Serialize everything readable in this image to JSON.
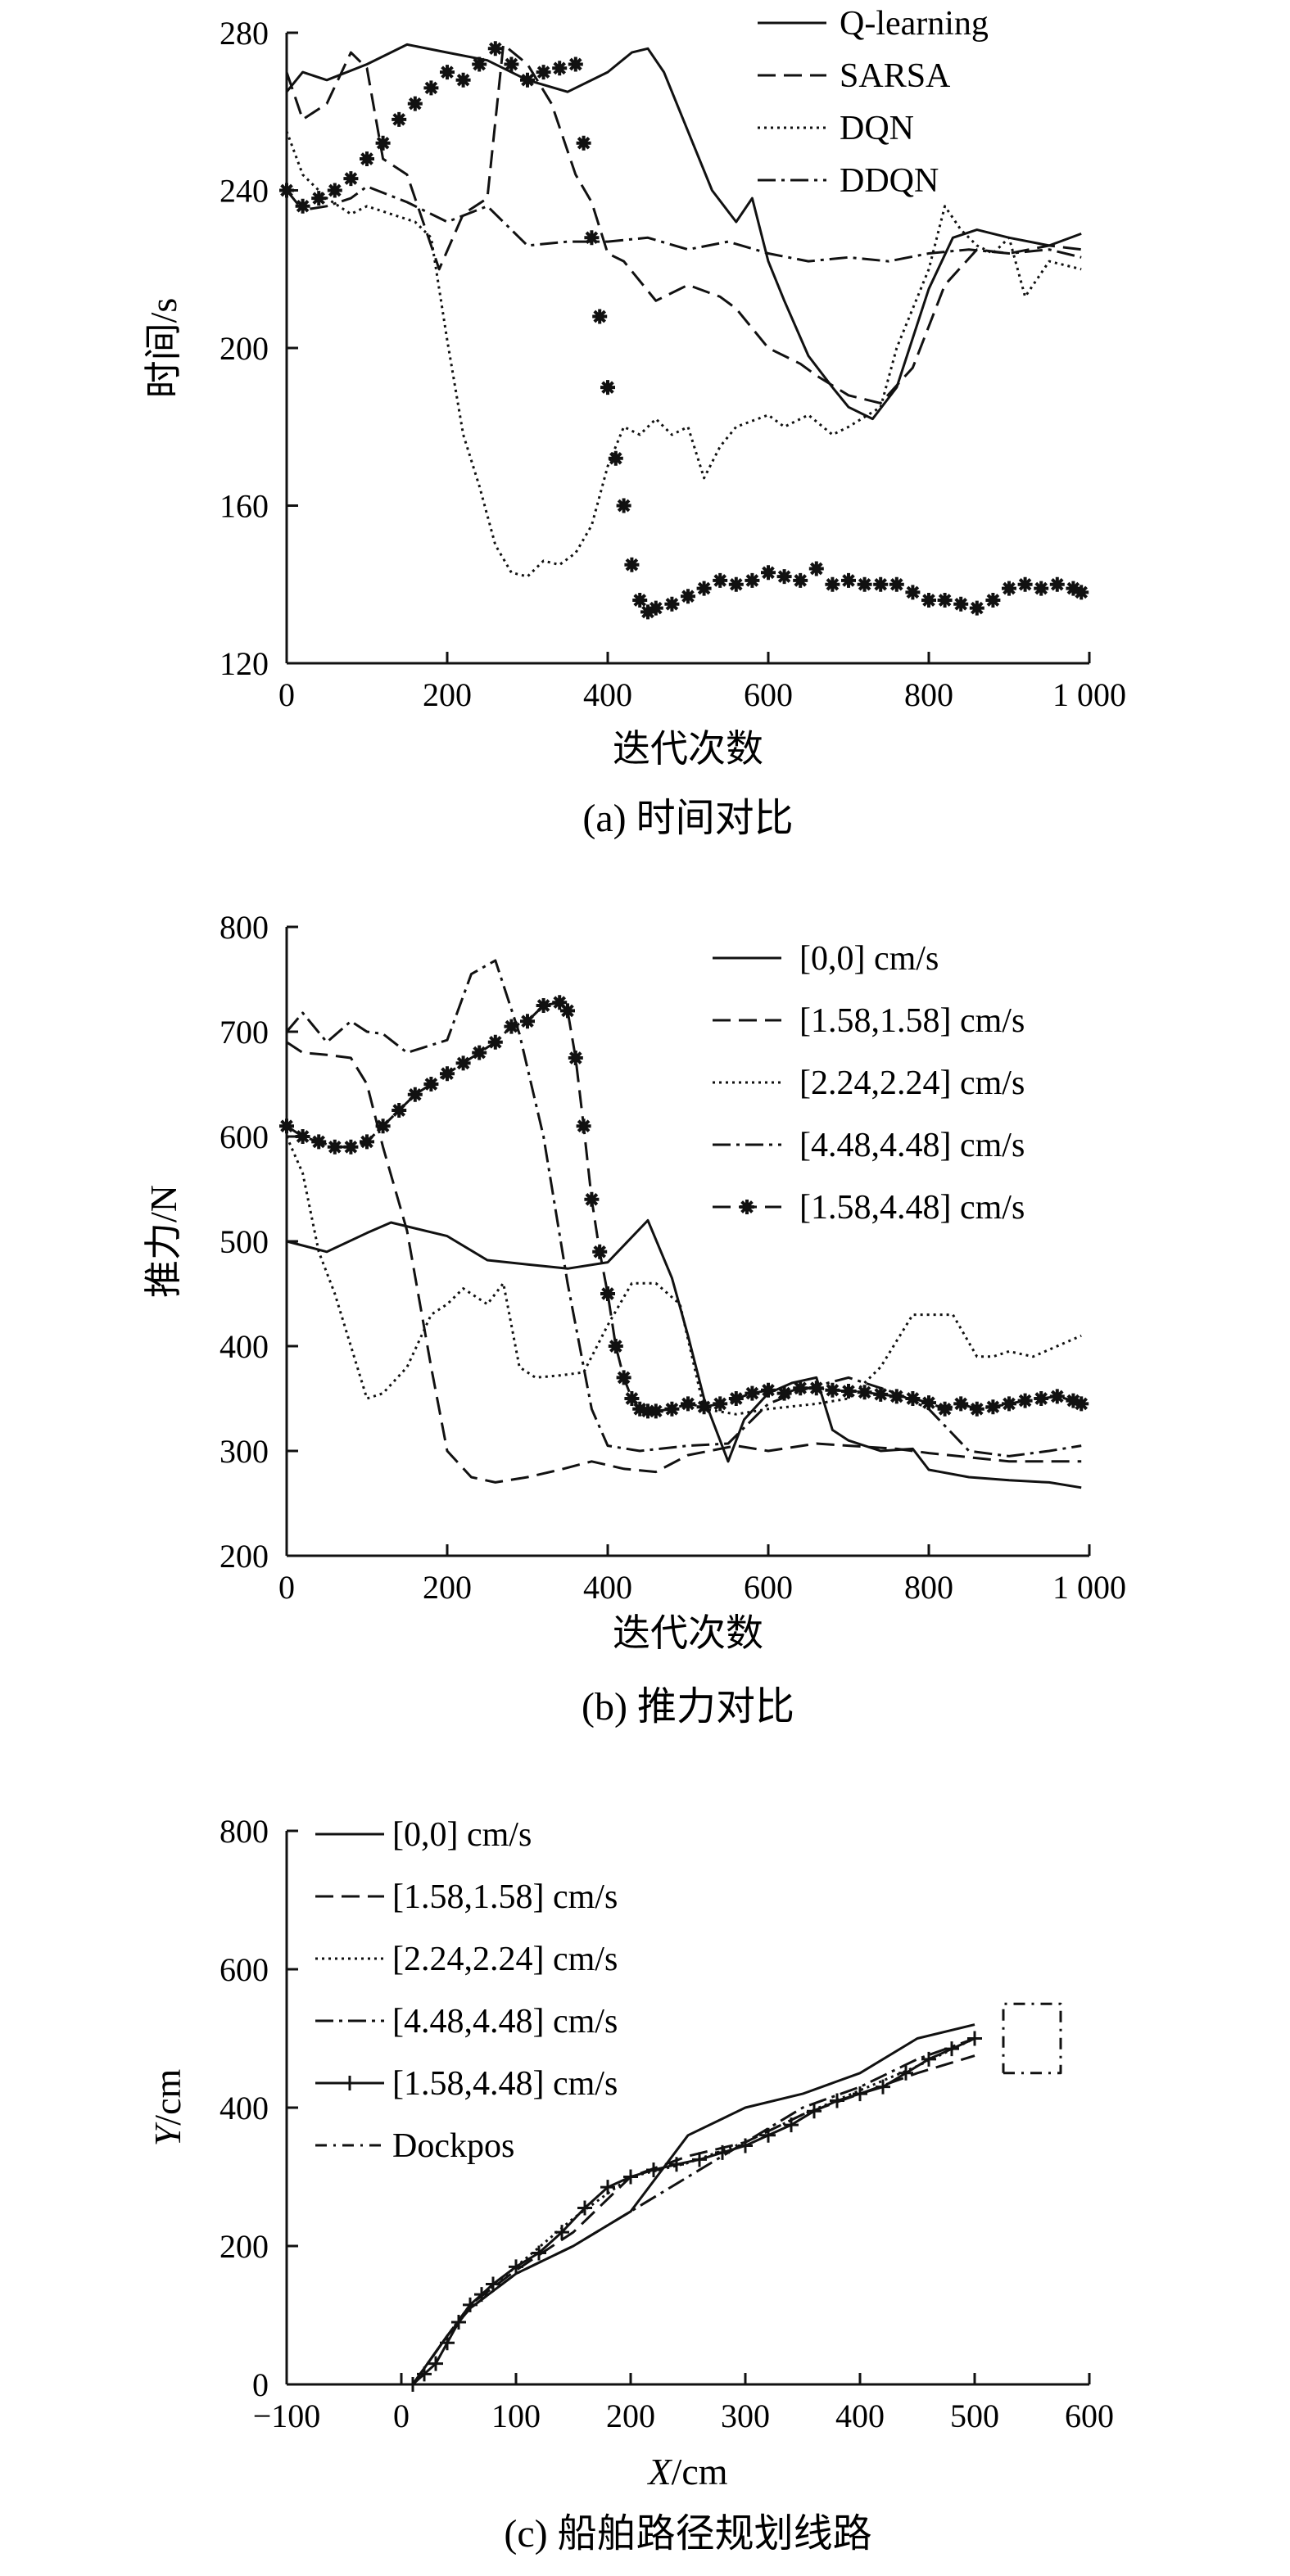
{
  "chart_data": [
    {
      "id": "a",
      "type": "line",
      "caption": "(a) 时间对比",
      "xlabel": "迭代次数",
      "ylabel": "时间/s",
      "xlim": [
        0,
        1000
      ],
      "ylim": [
        120,
        280
      ],
      "xticks": [
        0,
        200,
        400,
        600,
        800,
        1000
      ],
      "xtick_labels": [
        "0",
        "200",
        "400",
        "600",
        "800",
        "1 000"
      ],
      "yticks": [
        120,
        160,
        200,
        240,
        280
      ],
      "ytick_labels": [
        "120",
        "160",
        "200",
        "240",
        "280"
      ],
      "legend_position": "top-right",
      "series": [
        {
          "name": "Q-learning",
          "style": "solid",
          "x": [
            0,
            20,
            50,
            100,
            150,
            200,
            250,
            300,
            350,
            400,
            430,
            450,
            470,
            500,
            530,
            560,
            580,
            600,
            620,
            650,
            680,
            700,
            730,
            760,
            800,
            830,
            860,
            900,
            950,
            990
          ],
          "y": [
            265,
            270,
            268,
            272,
            277,
            275,
            273,
            268,
            265,
            270,
            275,
            276,
            270,
            255,
            240,
            232,
            238,
            222,
            212,
            198,
            190,
            185,
            182,
            190,
            215,
            228,
            230,
            228,
            226,
            229
          ]
        },
        {
          "name": "SARSA",
          "style": "dashed",
          "x": [
            0,
            20,
            50,
            80,
            100,
            120,
            150,
            170,
            190,
            220,
            250,
            270,
            300,
            330,
            360,
            380,
            400,
            420,
            460,
            500,
            540,
            560,
            600,
            640,
            660,
            700,
            740,
            780,
            820,
            860,
            900,
            950,
            990
          ],
          "y": [
            270,
            258,
            262,
            275,
            271,
            248,
            244,
            232,
            220,
            234,
            238,
            277,
            272,
            262,
            244,
            237,
            224,
            222,
            212,
            216,
            213,
            210,
            200,
            196,
            193,
            188,
            186,
            195,
            216,
            225,
            224,
            226,
            225
          ]
        },
        {
          "name": "DQN",
          "style": "dotted",
          "x": [
            0,
            20,
            50,
            80,
            100,
            130,
            160,
            180,
            200,
            220,
            240,
            260,
            280,
            300,
            320,
            340,
            360,
            380,
            400,
            420,
            440,
            460,
            480,
            500,
            520,
            540,
            560,
            600,
            620,
            650,
            680,
            700,
            740,
            760,
            800,
            820,
            840,
            860,
            880,
            900,
            920,
            950,
            990
          ],
          "y": [
            255,
            244,
            238,
            234,
            236,
            234,
            232,
            228,
            202,
            178,
            165,
            150,
            143,
            142,
            146,
            145,
            148,
            155,
            170,
            180,
            178,
            182,
            178,
            180,
            167,
            175,
            180,
            183,
            180,
            183,
            178,
            180,
            185,
            200,
            220,
            236,
            230,
            226,
            224,
            228,
            213,
            222,
            220
          ]
        },
        {
          "name": "DDQN",
          "style": "dashdot",
          "x": [
            0,
            20,
            50,
            80,
            100,
            150,
            200,
            250,
            300,
            350,
            400,
            450,
            500,
            550,
            600,
            650,
            700,
            750,
            800,
            850,
            900,
            950,
            990
          ],
          "y": [
            240,
            235,
            236,
            238,
            241,
            237,
            232,
            236,
            226,
            227,
            227,
            228,
            225,
            227,
            224,
            222,
            223,
            222,
            224,
            225,
            224,
            225,
            223
          ]
        },
        {
          "name": "",
          "style": "star-markers",
          "x": [
            0,
            20,
            40,
            60,
            80,
            100,
            120,
            140,
            160,
            180,
            200,
            220,
            240,
            260,
            280,
            300,
            320,
            340,
            360,
            370,
            380,
            390,
            400,
            410,
            420,
            430,
            440,
            450,
            460,
            480,
            500,
            520,
            540,
            560,
            580,
            600,
            620,
            640,
            660,
            680,
            700,
            720,
            740,
            760,
            780,
            800,
            820,
            840,
            860,
            880,
            900,
            920,
            940,
            960,
            980,
            990
          ],
          "y": [
            240,
            236,
            238,
            240,
            243,
            248,
            252,
            258,
            262,
            266,
            270,
            268,
            272,
            276,
            272,
            268,
            270,
            271,
            272,
            252,
            228,
            208,
            190,
            172,
            160,
            145,
            136,
            133,
            134,
            135,
            137,
            139,
            141,
            140,
            141,
            143,
            142,
            141,
            144,
            140,
            141,
            140,
            140,
            140,
            138,
            136,
            136,
            135,
            134,
            136,
            139,
            140,
            139,
            140,
            139,
            138
          ]
        }
      ]
    },
    {
      "id": "b",
      "type": "line",
      "caption": "(b) 推力对比",
      "xlabel": "迭代次数",
      "ylabel": "推力/N",
      "xlim": [
        0,
        1000
      ],
      "ylim": [
        200,
        800
      ],
      "xticks": [
        0,
        200,
        400,
        600,
        800,
        1000
      ],
      "xtick_labels": [
        "0",
        "200",
        "400",
        "600",
        "800",
        "1 000"
      ],
      "yticks": [
        200,
        300,
        400,
        500,
        600,
        700,
        800
      ],
      "ytick_labels": [
        "200",
        "300",
        "400",
        "500",
        "600",
        "700",
        "800"
      ],
      "legend_position": "top-right",
      "series": [
        {
          "name": "[0,0] cm/s",
          "style": "solid",
          "x": [
            0,
            50,
            100,
            130,
            200,
            250,
            300,
            350,
            400,
            450,
            480,
            500,
            520,
            550,
            570,
            600,
            630,
            660,
            680,
            700,
            740,
            780,
            800,
            850,
            900,
            950,
            990
          ],
          "y": [
            500,
            490,
            508,
            518,
            505,
            482,
            478,
            474,
            480,
            520,
            465,
            410,
            350,
            290,
            330,
            355,
            365,
            370,
            320,
            310,
            300,
            302,
            282,
            275,
            272,
            270,
            265
          ]
        },
        {
          "name": "[1.58,1.58] cm/s",
          "style": "dashed",
          "x": [
            0,
            20,
            50,
            80,
            100,
            120,
            150,
            180,
            200,
            230,
            260,
            300,
            340,
            380,
            420,
            460,
            500,
            560,
            600,
            660,
            700,
            760,
            800,
            850,
            900,
            950,
            990
          ],
          "y": [
            690,
            680,
            678,
            675,
            650,
            590,
            510,
            380,
            300,
            275,
            270,
            275,
            282,
            290,
            283,
            280,
            296,
            305,
            300,
            307,
            305,
            302,
            298,
            294,
            290,
            290,
            290
          ]
        },
        {
          "name": "[2.24,2.24] cm/s",
          "style": "dotted",
          "x": [
            0,
            20,
            40,
            60,
            80,
            100,
            120,
            150,
            180,
            200,
            220,
            250,
            270,
            290,
            310,
            340,
            370,
            400,
            430,
            460,
            490,
            520,
            560,
            600,
            660,
            700,
            740,
            780,
            800,
            830,
            860,
            880,
            900,
            930,
            960,
            990
          ],
          "y": [
            600,
            565,
            490,
            450,
            400,
            350,
            355,
            380,
            430,
            440,
            455,
            440,
            460,
            380,
            370,
            372,
            375,
            420,
            460,
            460,
            440,
            340,
            335,
            340,
            345,
            350,
            380,
            430,
            430,
            430,
            390,
            390,
            395,
            390,
            400,
            410
          ]
        },
        {
          "name": "[4.48,4.48] cm/s",
          "style": "dashdot",
          "x": [
            0,
            20,
            50,
            80,
            100,
            120,
            150,
            200,
            230,
            260,
            290,
            320,
            350,
            380,
            400,
            440,
            500,
            550,
            600,
            650,
            700,
            760,
            800,
            850,
            900,
            950,
            990
          ],
          "y": [
            700,
            718,
            690,
            710,
            700,
            698,
            680,
            692,
            755,
            768,
            698,
            600,
            460,
            340,
            305,
            300,
            305,
            307,
            345,
            360,
            370,
            355,
            340,
            300,
            295,
            300,
            305
          ]
        },
        {
          "name": "[1.58,4.48] cm/s",
          "style": "dashed-star",
          "x": [
            0,
            20,
            40,
            60,
            80,
            100,
            120,
            140,
            160,
            180,
            200,
            220,
            240,
            260,
            280,
            300,
            320,
            340,
            350,
            360,
            370,
            380,
            390,
            400,
            410,
            420,
            430,
            440,
            450,
            460,
            480,
            500,
            520,
            540,
            560,
            580,
            600,
            620,
            640,
            660,
            680,
            700,
            720,
            740,
            760,
            780,
            800,
            820,
            840,
            860,
            880,
            900,
            920,
            940,
            960,
            980,
            990
          ],
          "y": [
            610,
            600,
            595,
            590,
            590,
            595,
            610,
            625,
            640,
            650,
            660,
            670,
            680,
            690,
            705,
            710,
            725,
            728,
            720,
            675,
            610,
            540,
            490,
            450,
            400,
            370,
            350,
            340,
            338,
            338,
            340,
            345,
            342,
            345,
            350,
            355,
            358,
            355,
            360,
            360,
            358,
            357,
            356,
            354,
            352,
            350,
            346,
            340,
            345,
            340,
            342,
            345,
            348,
            350,
            352,
            348,
            345
          ]
        }
      ]
    },
    {
      "id": "c",
      "type": "line",
      "caption": "(c) 船舶路径规划线路",
      "xlabel_var": "X",
      "xlabel_unit": "/cm",
      "ylabel_var": "Y",
      "ylabel_unit": "/cm",
      "xlim": [
        -100,
        600
      ],
      "ylim": [
        0,
        800
      ],
      "xticks": [
        -100,
        0,
        100,
        200,
        300,
        400,
        500,
        600
      ],
      "xtick_labels": [
        "−100",
        "0",
        "100",
        "200",
        "300",
        "400",
        "500",
        "600"
      ],
      "yticks": [
        0,
        200,
        400,
        600,
        800
      ],
      "ytick_labels": [
        "0",
        "200",
        "400",
        "600",
        "800"
      ],
      "legend_position": "top-left",
      "series": [
        {
          "name": "[0,0] cm/s",
          "style": "solid",
          "x": [
            10,
            40,
            60,
            100,
            150,
            200,
            250,
            300,
            350,
            400,
            450,
            500
          ],
          "y": [
            0,
            70,
            110,
            160,
            200,
            250,
            360,
            400,
            420,
            450,
            500,
            520
          ]
        },
        {
          "name": "[1.58,1.58] cm/s",
          "style": "dashed",
          "x": [
            10,
            40,
            60,
            100,
            150,
            200,
            250,
            300,
            350,
            400,
            450,
            500
          ],
          "y": [
            0,
            70,
            115,
            165,
            220,
            300,
            330,
            350,
            390,
            420,
            450,
            475
          ]
        },
        {
          "name": "[2.24,2.24] cm/s",
          "style": "dotted",
          "x": [
            10,
            40,
            60,
            100,
            150,
            200,
            250,
            300,
            350,
            400,
            450,
            500
          ],
          "y": [
            0,
            70,
            115,
            170,
            240,
            300,
            320,
            350,
            390,
            425,
            460,
            500
          ]
        },
        {
          "name": "[4.48,4.48] cm/s",
          "style": "dashdot",
          "x": [
            10,
            40,
            60,
            100,
            150,
            200,
            250,
            300,
            350,
            400,
            450,
            500
          ],
          "y": [
            0,
            70,
            110,
            160,
            200,
            250,
            300,
            350,
            400,
            430,
            470,
            500
          ]
        },
        {
          "name": "[1.58,4.48] cm/s",
          "style": "solid-plus",
          "x": [
            10,
            20,
            30,
            40,
            50,
            60,
            70,
            80,
            100,
            120,
            140,
            160,
            180,
            200,
            220,
            240,
            260,
            280,
            300,
            320,
            340,
            360,
            380,
            400,
            420,
            440,
            460,
            480,
            500
          ],
          "y": [
            0,
            15,
            30,
            60,
            90,
            115,
            130,
            145,
            170,
            190,
            220,
            255,
            285,
            300,
            310,
            318,
            325,
            335,
            345,
            360,
            375,
            395,
            410,
            420,
            430,
            450,
            470,
            485,
            500
          ]
        },
        {
          "name": "Dockpos",
          "style": "dashdot-box",
          "x": [
            525,
            575,
            575,
            525,
            525
          ],
          "y": [
            450,
            450,
            550,
            550,
            450
          ]
        }
      ]
    }
  ]
}
